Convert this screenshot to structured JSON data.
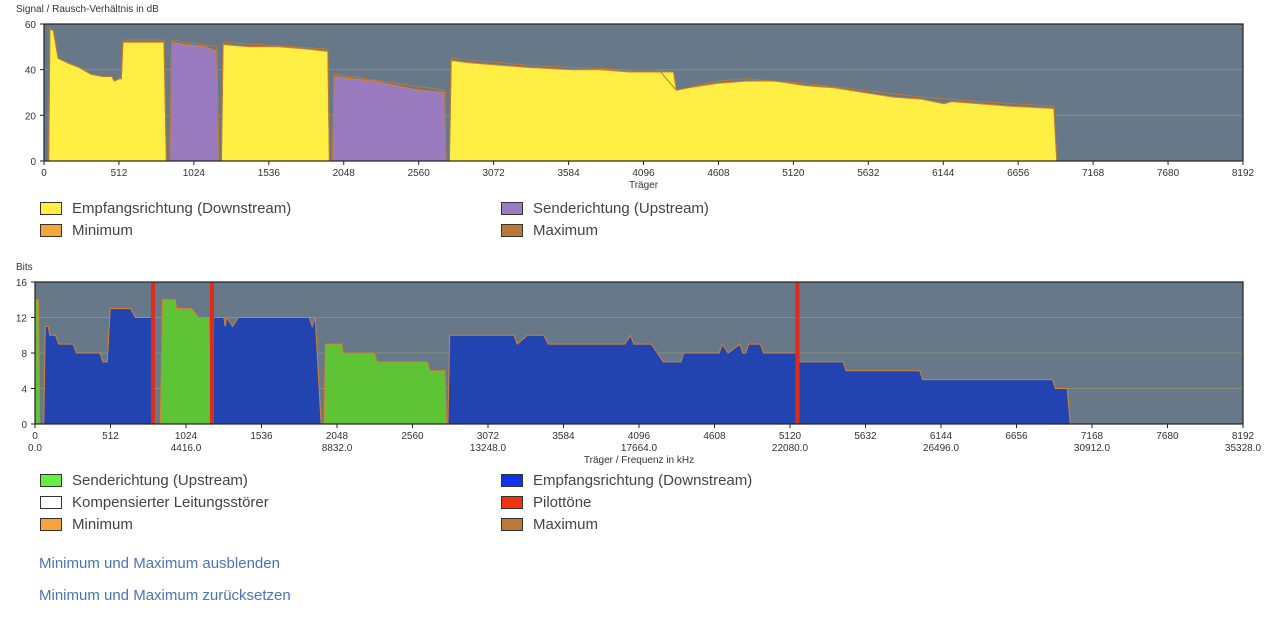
{
  "chart_data": [
    {
      "id": "snr",
      "type": "area",
      "ylabel": "Signal / Rausch-Verhältnis in dB",
      "xlabel": "Träger",
      "xlim": [
        0,
        8192
      ],
      "ylim": [
        0,
        60
      ],
      "xticks": [
        0,
        512,
        1024,
        1536,
        2048,
        2560,
        3072,
        3584,
        4096,
        4608,
        5120,
        5632,
        6144,
        6656,
        7168,
        7680,
        8192
      ],
      "yticks": [
        0,
        20,
        40,
        60
      ],
      "series": [
        {
          "name": "Empfangsrichtung (Downstream)",
          "color": "#ffee44",
          "points": [
            [
              0,
              0
            ],
            [
              32,
              0
            ],
            [
              40,
              58
            ],
            [
              64,
              57
            ],
            [
              96,
              45
            ],
            [
              160,
              43
            ],
            [
              240,
              41
            ],
            [
              320,
              38
            ],
            [
              400,
              37
            ],
            [
              464,
              37
            ],
            [
              480,
              35
            ],
            [
              512,
              36
            ],
            [
              528,
              36
            ],
            [
              540,
              52
            ],
            [
              640,
              52
            ],
            [
              760,
              52
            ],
            [
              820,
              52
            ],
            [
              836,
              0
            ]
          ]
        },
        {
          "name": "Senderichtung (Upstream)",
          "color": "#9b7bbf",
          "points": [
            [
              860,
              0
            ],
            [
              872,
              52
            ],
            [
              960,
              51
            ],
            [
              1100,
              50
            ],
            [
              1180,
              48
            ],
            [
              1196,
              0
            ]
          ]
        },
        {
          "name": "Empfangsrichtung (Downstream)",
          "color": "#ffee44",
          "points": [
            [
              1212,
              0
            ],
            [
              1224,
              51
            ],
            [
              1400,
              50
            ],
            [
              1600,
              50
            ],
            [
              1800,
              49
            ],
            [
              1940,
              48
            ],
            [
              1950,
              0
            ]
          ]
        },
        {
          "name": "Senderichtung (Upstream)",
          "color": "#9b7bbf",
          "points": [
            [
              1970,
              0
            ],
            [
              1982,
              37
            ],
            [
              2100,
              36
            ],
            [
              2250,
              35
            ],
            [
              2400,
              33
            ],
            [
              2560,
              31
            ],
            [
              2738,
              30
            ],
            [
              2746,
              0
            ]
          ]
        },
        {
          "name": "Empfangsrichtung (Downstream)",
          "color": "#ffee44",
          "points": [
            [
              2770,
              0
            ],
            [
              2782,
              44
            ],
            [
              2900,
              43
            ],
            [
              3100,
              42
            ],
            [
              3300,
              41
            ],
            [
              3600,
              40
            ],
            [
              3800,
              40
            ],
            [
              4000,
              39
            ],
            [
              4100,
              39
            ],
            [
              4200,
              39
            ],
            [
              4300,
              39
            ],
            [
              4320,
              31
            ],
            [
              4400,
              32
            ],
            [
              4600,
              34
            ],
            [
              4800,
              35
            ],
            [
              5000,
              35
            ],
            [
              5200,
              33
            ],
            [
              5400,
              32
            ],
            [
              5600,
              30
            ],
            [
              5800,
              28
            ],
            [
              6000,
              27
            ],
            [
              6150,
              25
            ],
            [
              6200,
              26
            ],
            [
              6400,
              25
            ],
            [
              6600,
              24
            ],
            [
              6900,
              23
            ],
            [
              6920,
              0
            ]
          ]
        }
      ],
      "max_series": {
        "name": "Maximum",
        "color": "#b87a36",
        "points": [
          [
            0,
            0
          ],
          [
            32,
            0
          ],
          [
            40,
            58
          ],
          [
            64,
            57
          ],
          [
            96,
            45
          ],
          [
            160,
            43
          ],
          [
            240,
            41
          ],
          [
            320,
            38
          ],
          [
            400,
            37
          ],
          [
            464,
            37
          ],
          [
            480,
            35
          ],
          [
            512,
            36
          ],
          [
            528,
            36
          ],
          [
            540,
            53
          ],
          [
            820,
            53
          ],
          [
            836,
            0
          ],
          [
            860,
            0
          ],
          [
            872,
            53
          ],
          [
            1180,
            50
          ],
          [
            1196,
            0
          ],
          [
            1212,
            0
          ],
          [
            1224,
            52
          ],
          [
            1940,
            49
          ],
          [
            1950,
            0
          ],
          [
            1970,
            0
          ],
          [
            1982,
            38
          ],
          [
            2738,
            31
          ],
          [
            2746,
            0
          ],
          [
            2770,
            0
          ],
          [
            2782,
            45
          ],
          [
            3300,
            42
          ],
          [
            3600,
            41
          ],
          [
            4000,
            40
          ],
          [
            4200,
            40
          ],
          [
            4320,
            31
          ],
          [
            4600,
            35
          ],
          [
            4800,
            36
          ],
          [
            5000,
            35
          ],
          [
            5200,
            34
          ],
          [
            5600,
            31
          ],
          [
            6000,
            28
          ],
          [
            6400,
            26
          ],
          [
            6900,
            24
          ],
          [
            6920,
            0
          ]
        ]
      },
      "legend": [
        {
          "label": "Empfangsrichtung (Downstream)",
          "color": "#ffee44"
        },
        {
          "label": "Senderichtung (Upstream)",
          "color": "#9b7bbf"
        },
        {
          "label": "Minimum",
          "color": "#f5a53a"
        },
        {
          "label": "Maximum",
          "color": "#b87a36"
        }
      ]
    },
    {
      "id": "bits",
      "type": "area",
      "ylabel": "Bits",
      "xlabel": "Träger / Frequenz in kHz",
      "xlim": [
        0,
        8192
      ],
      "ylim": [
        0,
        16
      ],
      "xticks": [
        0,
        512,
        1024,
        1536,
        2048,
        2560,
        3072,
        3584,
        4096,
        4608,
        5120,
        5632,
        6144,
        6656,
        7168,
        7680,
        8192
      ],
      "xticks2": [
        {
          "x": 0,
          "label": "0.0"
        },
        {
          "x": 1024,
          "label": "4416.0"
        },
        {
          "x": 2048,
          "label": "8832.0"
        },
        {
          "x": 3072,
          "label": "13248.0"
        },
        {
          "x": 4096,
          "label": "17664.0"
        },
        {
          "x": 5120,
          "label": "22080.0"
        },
        {
          "x": 6144,
          "label": "26496.0"
        },
        {
          "x": 7168,
          "label": "30912.0"
        },
        {
          "x": 8192,
          "label": "35328.0"
        }
      ],
      "yticks": [
        0,
        4,
        8,
        12,
        16
      ],
      "series": [
        {
          "name": "Senderichtung (Upstream)",
          "color": "#5fc435",
          "points": [
            [
              0,
              0
            ],
            [
              4,
              14
            ],
            [
              24,
              14
            ],
            [
              32,
              0
            ]
          ]
        },
        {
          "name": "Empfangsrichtung (Downstream)",
          "color": "#2244b0",
          "points": [
            [
              60,
              0
            ],
            [
              70,
              11
            ],
            [
              90,
              11
            ],
            [
              100,
              10
            ],
            [
              140,
              10
            ],
            [
              160,
              9
            ],
            [
              260,
              9
            ],
            [
              280,
              8
            ],
            [
              440,
              8
            ],
            [
              460,
              7
            ],
            [
              490,
              7
            ],
            [
              510,
              13
            ],
            [
              650,
              13
            ],
            [
              680,
              12
            ],
            [
              790,
              12
            ],
            [
              800,
              0
            ]
          ]
        },
        {
          "name": "Senderichtung (Upstream)",
          "color": "#5fc435",
          "points": [
            [
              850,
              0
            ],
            [
              865,
              14
            ],
            [
              950,
              14
            ],
            [
              960,
              13
            ],
            [
              1060,
              13
            ],
            [
              1110,
              12
            ],
            [
              1180,
              12
            ],
            [
              1190,
              0
            ]
          ]
        },
        {
          "name": "Empfangsrichtung (Downstream)",
          "color": "#2244b0",
          "points": [
            [
              1200,
              0
            ],
            [
              1212,
              12
            ],
            [
              1280,
              12
            ],
            [
              1290,
              11
            ],
            [
              1300,
              12
            ],
            [
              1340,
              11
            ],
            [
              1380,
              12
            ],
            [
              1860,
              12
            ],
            [
              1880,
              11
            ],
            [
              1900,
              12
            ],
            [
              1940,
              0
            ]
          ]
        },
        {
          "name": "Senderichtung (Upstream)",
          "color": "#5fc435",
          "points": [
            [
              1960,
              0
            ],
            [
              1970,
              9
            ],
            [
              2080,
              9
            ],
            [
              2090,
              8
            ],
            [
              2300,
              8
            ],
            [
              2320,
              7
            ],
            [
              2660,
              7
            ],
            [
              2680,
              6
            ],
            [
              2780,
              6
            ],
            [
              2790,
              0
            ]
          ]
        },
        {
          "name": "Empfangsrichtung (Downstream)",
          "color": "#2244b0",
          "points": [
            [
              2800,
              0
            ],
            [
              2812,
              10
            ],
            [
              3250,
              10
            ],
            [
              3270,
              9
            ],
            [
              3340,
              10
            ],
            [
              3450,
              10
            ],
            [
              3480,
              9
            ],
            [
              3560,
              9
            ],
            [
              3600,
              9
            ],
            [
              3860,
              9
            ],
            [
              4000,
              9
            ],
            [
              4040,
              10
            ],
            [
              4060,
              9
            ],
            [
              4100,
              9
            ],
            [
              4180,
              9
            ],
            [
              4260,
              7
            ],
            [
              4380,
              7
            ],
            [
              4400,
              8
            ],
            [
              4640,
              8
            ],
            [
              4660,
              9
            ],
            [
              4700,
              8
            ],
            [
              4780,
              9
            ],
            [
              4800,
              8
            ],
            [
              4820,
              8
            ],
            [
              4840,
              9
            ],
            [
              4920,
              9
            ],
            [
              4940,
              8
            ],
            [
              5160,
              8
            ],
            [
              5180,
              7
            ],
            [
              5480,
              7
            ],
            [
              5500,
              6
            ],
            [
              6000,
              6
            ],
            [
              6020,
              5
            ],
            [
              6900,
              5
            ],
            [
              6920,
              4
            ],
            [
              7000,
              4
            ],
            [
              7020,
              0
            ]
          ]
        }
      ],
      "pilot_tones": [
        800,
        1200,
        5170
      ],
      "legend": [
        {
          "label": "Senderichtung (Upstream)",
          "color": "#66ee44"
        },
        {
          "label": "Empfangsrichtung (Downstream)",
          "color": "#1133ee"
        },
        {
          "label": "Kompensierter Leitungsstörer",
          "color": "#ffffff"
        },
        {
          "label": "Pilottöne",
          "color": "#ee3311"
        },
        {
          "label": "Minimum",
          "color": "#f5a53a"
        },
        {
          "label": "Maximum",
          "color": "#b87a36"
        }
      ]
    }
  ],
  "links": {
    "hide_minmax": "Minimum und Maximum ausblenden",
    "reset_minmax": "Minimum und Maximum zurücksetzen"
  },
  "colors": {
    "plot_bg": "#677889",
    "grid": "#8a8f7a",
    "pilot": "#e02a1a",
    "max_line": "#d9822b"
  }
}
